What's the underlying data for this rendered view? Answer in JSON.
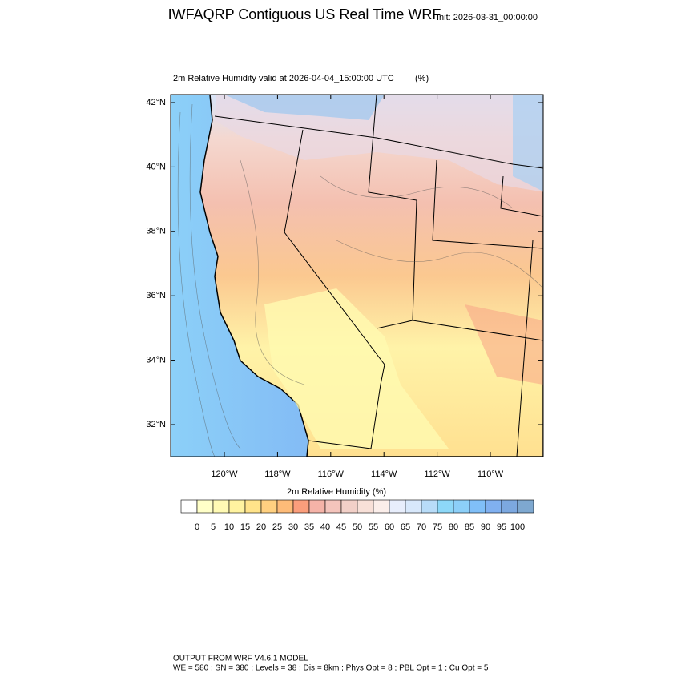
{
  "header": {
    "title": "IWFAQRP Contiguous US Real Time WRF",
    "init": "Init: 2026-03-31_00:00:00"
  },
  "map": {
    "subtitle": "2m Relative Humidity valid at 2026-04-04_15:00:00 UTC",
    "units": "(%)",
    "lat_ticks": [
      {
        "value": 42,
        "label": "42°N"
      },
      {
        "value": 40,
        "label": "40°N"
      },
      {
        "value": 38,
        "label": "38°N"
      },
      {
        "value": 36,
        "label": "36°N"
      },
      {
        "value": 34,
        "label": "34°N"
      },
      {
        "value": 32,
        "label": "32°N"
      }
    ],
    "lon_ticks": [
      {
        "value": -120,
        "label": "120°W"
      },
      {
        "value": -118,
        "label": "118°W"
      },
      {
        "value": -116,
        "label": "116°W"
      },
      {
        "value": -114,
        "label": "114°W"
      },
      {
        "value": -112,
        "label": "112°W"
      },
      {
        "value": -110,
        "label": "110°W"
      }
    ]
  },
  "colorbar": {
    "title": "2m Relative Humidity  (%)",
    "levels": [
      0,
      5,
      10,
      15,
      20,
      25,
      30,
      35,
      40,
      45,
      50,
      55,
      60,
      65,
      70,
      75,
      80,
      85,
      90,
      95,
      100
    ],
    "colors": [
      "#ffffff",
      "#ffffc8",
      "#fffab4",
      "#fff3a0",
      "#ffe38a",
      "#ffd080",
      "#fdbb78",
      "#fb9e7c",
      "#f5b3a8",
      "#f4c4bc",
      "#f2d0c8",
      "#f8e0d8",
      "#fbeeea",
      "#e8eefc",
      "#d8e8fb",
      "#b8dcf8",
      "#8dd8f8",
      "#8ccff8",
      "#80bff8",
      "#80b0f0",
      "#7ca8e0",
      "#7ea8d0"
    ]
  },
  "footer": {
    "lines": [
      "OUTPUT FROM WRF V4.6.1 MODEL",
      "WE = 580 ; SN = 380 ; Levels = 38 ; Dis = 8km ; Phys Opt = 8 ; PBL Opt = 1 ; Cu Opt = 5"
    ]
  }
}
